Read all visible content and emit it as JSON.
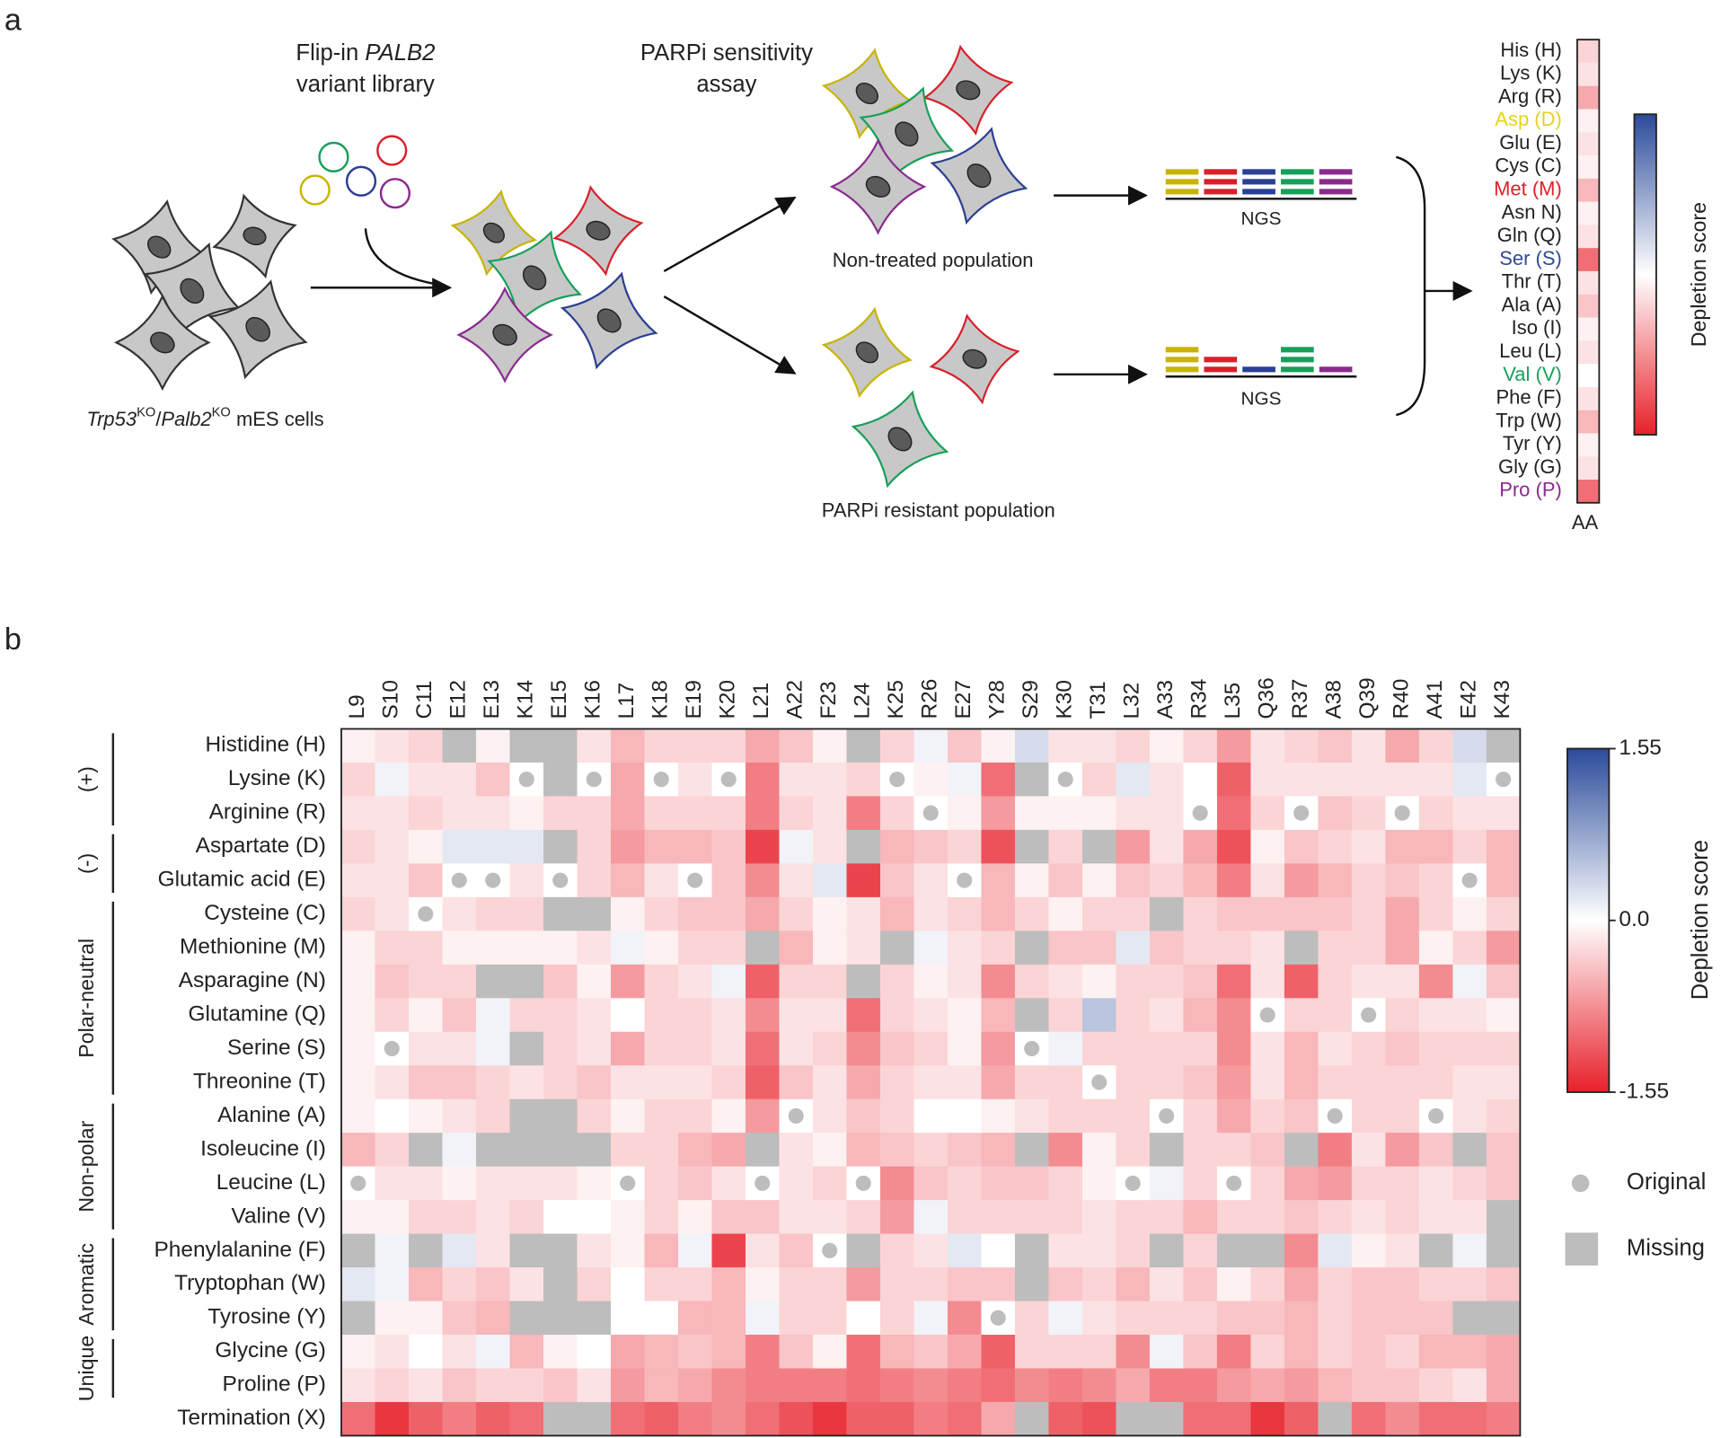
{
  "panel_labels": [
    "a",
    "b"
  ],
  "panel_a": {
    "library_label": {
      "line1": [
        "Flip-in ",
        "PALB2"
      ],
      "line2": "variant library"
    },
    "assay_label": [
      "PARPi sensitivity",
      "assay"
    ],
    "untreated": "Non-treated population",
    "resistant": "PARPi resistant population",
    "ngs": [
      "NGS",
      "NGS"
    ],
    "cell_line": [
      "Trp53",
      "KO",
      "/",
      "Palb2",
      "KO",
      " mES cells"
    ],
    "aa_scores": {
      "labels": [
        "His (H)",
        "Lys (K)",
        "Arg (R)",
        "Asp (D)",
        "Glu (E)",
        "Cys (C)",
        "Met (M)",
        "Asn N)",
        "Gln (Q)",
        "Ser (S)",
        "Thr (T)",
        "Ala (A)",
        "Iso (I)",
        "Leu (L)",
        "Val (V)",
        "Phe (F)",
        "Trp (W)",
        "Tyr (Y)",
        "Gly (G)",
        "Pro (P)"
      ],
      "label_colors": [
        "#222222",
        "#222222",
        "#222222",
        "#e6d21e",
        "#222222",
        "#222222",
        "#e0202a",
        "#222222",
        "#222222",
        "#2e4b9b",
        "#222222",
        "#222222",
        "#222222",
        "#222222",
        "#1aa05a",
        "#222222",
        "#222222",
        "#222222",
        "#222222",
        "#8b2a8e"
      ],
      "values": [
        -0.3,
        -0.2,
        -0.6,
        -0.1,
        -0.2,
        -0.1,
        -0.5,
        -0.1,
        -0.2,
        -1.0,
        -0.2,
        -0.4,
        -0.1,
        -0.2,
        0,
        -0.2,
        -0.5,
        -0.1,
        -0.2,
        -1.0
      ],
      "axis_label": "AA",
      "colorbar_label": "Depletion score"
    }
  },
  "chart_data": {
    "type": "heatmap",
    "columns": [
      "L9",
      "S10",
      "C11",
      "E12",
      "E13",
      "K14",
      "E15",
      "K16",
      "L17",
      "K18",
      "E19",
      "K20",
      "L21",
      "A22",
      "F23",
      "L24",
      "K25",
      "R26",
      "E27",
      "Y28",
      "S29",
      "K30",
      "T31",
      "L32",
      "A33",
      "R34",
      "L35",
      "Q36",
      "R37",
      "A38",
      "Q39",
      "R40",
      "A41",
      "E42",
      "K43"
    ],
    "rows": [
      "Histidine (H)",
      "Lysine (K)",
      "Arginine (R)",
      "Aspartate (D)",
      "Glutamic acid (E)",
      "Cysteine (C)",
      "Methionine (M)",
      "Asparagine (N)",
      "Glutamine (Q)",
      "Serine (S)",
      "Threonine (T)",
      "Alanine (A)",
      "Isoleucine (I)",
      "Leucine (L)",
      "Valine (V)",
      "Phenylalanine (F)",
      "Tryptophan (W)",
      "Tyrosine (Y)",
      "Glycine (G)",
      "Proline (P)",
      "Termination (X)"
    ],
    "groups": [
      {
        "label": "(+)",
        "rows": [
          0,
          2
        ]
      },
      {
        "label": "(-)",
        "rows": [
          3,
          4
        ]
      },
      {
        "label": "Polar-neutral",
        "rows": [
          5,
          10
        ]
      },
      {
        "label": "Non-polar",
        "rows": [
          11,
          14
        ]
      },
      {
        "label": "Aromatic",
        "rows": [
          15,
          17
        ]
      },
      {
        "label": "Unique",
        "rows": [
          18,
          19
        ]
      }
    ],
    "values": [
      [
        -0.1,
        -0.2,
        -0.3,
        null,
        -0.1,
        null,
        null,
        -0.2,
        -0.5,
        -0.3,
        -0.3,
        -0.3,
        -0.6,
        -0.4,
        -0.1,
        null,
        -0.3,
        0.1,
        -0.4,
        -0.1,
        0.3,
        -0.2,
        -0.2,
        -0.3,
        -0.1,
        -0.3,
        -0.7,
        -0.2,
        -0.3,
        -0.4,
        -0.2,
        -0.6,
        -0.3,
        0.3,
        null
      ],
      [
        -0.3,
        0.1,
        -0.2,
        -0.2,
        -0.4,
        0,
        null,
        0,
        -0.6,
        0,
        -0.2,
        0,
        -0.9,
        -0.2,
        -0.2,
        -0.3,
        0,
        -0.1,
        0.1,
        -1.0,
        null,
        0,
        -0.3,
        0.2,
        -0.2,
        0,
        -1.1,
        -0.2,
        -0.2,
        -0.2,
        -0.2,
        -0.2,
        -0.2,
        0.2,
        0
      ],
      [
        -0.2,
        -0.2,
        -0.3,
        -0.2,
        -0.2,
        -0.1,
        -0.3,
        -0.3,
        -0.6,
        -0.3,
        -0.3,
        -0.3,
        -0.9,
        -0.3,
        -0.2,
        -0.9,
        -0.3,
        0,
        -0.1,
        -0.7,
        -0.1,
        -0.1,
        -0.1,
        -0.2,
        -0.2,
        0,
        -1.0,
        -0.3,
        0,
        -0.4,
        -0.3,
        0,
        -0.3,
        -0.2,
        -0.2
      ],
      [
        -0.3,
        -0.2,
        -0.1,
        0.2,
        0.2,
        0.2,
        null,
        -0.3,
        -0.7,
        -0.5,
        -0.5,
        -0.4,
        -1.3,
        0.1,
        -0.2,
        null,
        -0.5,
        -0.4,
        -0.3,
        -1.2,
        null,
        -0.3,
        null,
        -0.7,
        -0.2,
        -0.6,
        -1.2,
        -0.1,
        -0.4,
        -0.3,
        -0.2,
        -0.5,
        -0.5,
        -0.3,
        -0.5
      ],
      [
        -0.2,
        -0.2,
        -0.4,
        0,
        0,
        -0.2,
        0,
        -0.3,
        -0.5,
        -0.2,
        0,
        -0.4,
        -0.8,
        -0.2,
        0.2,
        -1.3,
        -0.4,
        -0.2,
        0,
        -0.5,
        -0.1,
        -0.4,
        -0.1,
        -0.4,
        -0.3,
        -0.5,
        -0.9,
        -0.2,
        -0.7,
        -0.5,
        -0.3,
        -0.4,
        -0.3,
        0,
        -0.5
      ],
      [
        -0.3,
        -0.2,
        0,
        -0.2,
        -0.3,
        -0.3,
        null,
        null,
        -0.1,
        -0.3,
        -0.4,
        -0.4,
        -0.6,
        -0.3,
        -0.1,
        -0.2,
        -0.5,
        -0.2,
        -0.3,
        -0.5,
        -0.3,
        -0.1,
        -0.3,
        -0.3,
        null,
        -0.3,
        -0.4,
        -0.4,
        -0.4,
        -0.4,
        -0.3,
        -0.6,
        -0.3,
        -0.1,
        -0.3
      ],
      [
        -0.1,
        -0.3,
        -0.3,
        -0.1,
        -0.1,
        -0.1,
        -0.1,
        -0.2,
        0.1,
        -0.1,
        -0.3,
        -0.3,
        null,
        -0.5,
        -0.1,
        -0.2,
        null,
        0.1,
        -0.2,
        -0.3,
        null,
        -0.4,
        -0.4,
        0.2,
        -0.4,
        -0.3,
        -0.3,
        -0.2,
        null,
        -0.3,
        -0.3,
        -0.6,
        -0.1,
        -0.3,
        -0.7
      ],
      [
        -0.1,
        -0.4,
        -0.3,
        -0.3,
        null,
        null,
        -0.4,
        -0.1,
        -0.7,
        -0.3,
        -0.2,
        0.1,
        -1.1,
        -0.3,
        -0.3,
        null,
        -0.3,
        -0.1,
        -0.2,
        -0.8,
        -0.3,
        -0.2,
        -0.1,
        -0.3,
        -0.3,
        -0.4,
        -1.0,
        -0.2,
        -1.1,
        -0.3,
        -0.2,
        -0.2,
        -0.8,
        0.1,
        -0.4
      ],
      [
        -0.1,
        -0.3,
        -0.1,
        -0.4,
        0.1,
        -0.3,
        -0.3,
        -0.2,
        0,
        -0.3,
        -0.3,
        -0.2,
        -0.8,
        -0.2,
        -0.2,
        -1.0,
        -0.3,
        -0.2,
        -0.1,
        -0.5,
        null,
        -0.3,
        0.5,
        -0.3,
        -0.2,
        -0.5,
        -0.8,
        0,
        -0.3,
        -0.3,
        0,
        -0.3,
        -0.2,
        -0.2,
        -0.1
      ],
      [
        -0.1,
        0,
        -0.2,
        -0.2,
        0.1,
        null,
        -0.3,
        -0.2,
        -0.6,
        -0.3,
        -0.3,
        -0.2,
        -1.0,
        -0.2,
        -0.3,
        -0.8,
        -0.4,
        -0.3,
        -0.1,
        -0.7,
        0,
        0.1,
        -0.3,
        -0.3,
        -0.3,
        -0.3,
        -0.8,
        -0.2,
        -0.5,
        -0.2,
        -0.3,
        -0.4,
        -0.3,
        -0.3,
        -0.3
      ],
      [
        -0.1,
        -0.2,
        -0.4,
        -0.4,
        -0.3,
        -0.2,
        -0.3,
        -0.4,
        -0.2,
        -0.2,
        -0.2,
        -0.3,
        -1.1,
        -0.4,
        -0.2,
        -0.6,
        -0.3,
        -0.2,
        -0.2,
        -0.6,
        -0.3,
        -0.3,
        0,
        -0.3,
        -0.3,
        -0.4,
        -0.7,
        -0.2,
        -0.5,
        -0.3,
        -0.3,
        -0.3,
        -0.3,
        -0.2,
        -0.2
      ],
      [
        -0.1,
        0,
        -0.1,
        -0.2,
        -0.3,
        null,
        null,
        -0.3,
        -0.1,
        -0.3,
        -0.3,
        -0.1,
        -0.7,
        0,
        -0.2,
        -0.4,
        -0.3,
        0,
        0,
        -0.1,
        -0.2,
        -0.3,
        -0.3,
        -0.3,
        0,
        -0.3,
        -0.6,
        -0.3,
        -0.4,
        0,
        -0.3,
        -0.3,
        0,
        -0.2,
        -0.3
      ],
      [
        -0.5,
        -0.3,
        null,
        0.1,
        null,
        null,
        null,
        null,
        -0.3,
        -0.3,
        -0.5,
        -0.6,
        null,
        -0.2,
        -0.1,
        -0.5,
        -0.4,
        -0.3,
        -0.4,
        -0.5,
        null,
        -0.8,
        -0.1,
        -0.3,
        null,
        -0.3,
        -0.3,
        -0.4,
        null,
        -0.9,
        -0.2,
        -0.7,
        -0.4,
        null,
        -0.4
      ],
      [
        0,
        -0.2,
        -0.2,
        -0.1,
        -0.2,
        -0.2,
        -0.2,
        -0.1,
        0,
        -0.3,
        -0.4,
        -0.2,
        0,
        -0.2,
        -0.3,
        0,
        -0.8,
        -0.4,
        -0.3,
        -0.4,
        -0.4,
        -0.3,
        -0.1,
        0,
        0.1,
        -0.3,
        0,
        -0.3,
        -0.6,
        -0.7,
        -0.3,
        -0.3,
        -0.2,
        -0.3,
        -0.4
      ],
      [
        -0.1,
        -0.1,
        -0.3,
        -0.3,
        -0.2,
        -0.3,
        0,
        0,
        -0.1,
        -0.3,
        -0.1,
        -0.4,
        -0.4,
        -0.2,
        -0.2,
        -0.3,
        -0.7,
        0.1,
        -0.3,
        -0.3,
        -0.3,
        -0.3,
        -0.2,
        -0.3,
        -0.3,
        -0.5,
        -0.3,
        -0.3,
        -0.4,
        -0.3,
        -0.2,
        -0.3,
        -0.2,
        -0.2,
        null
      ],
      [
        null,
        0.1,
        null,
        0.2,
        -0.2,
        null,
        null,
        -0.2,
        -0.1,
        -0.5,
        0.1,
        -1.3,
        -0.2,
        -0.4,
        0,
        null,
        -0.3,
        -0.2,
        0.2,
        0,
        null,
        -0.2,
        -0.2,
        -0.3,
        null,
        -0.3,
        null,
        null,
        -0.8,
        0.2,
        -0.1,
        -0.2,
        null,
        0.1,
        null
      ],
      [
        0.2,
        0.1,
        -0.5,
        -0.3,
        -0.4,
        -0.2,
        null,
        -0.3,
        0,
        -0.3,
        -0.3,
        -0.5,
        -0.1,
        -0.3,
        -0.3,
        -0.7,
        -0.3,
        -0.3,
        -0.4,
        -0.4,
        null,
        -0.4,
        -0.3,
        -0.5,
        -0.2,
        -0.4,
        -0.1,
        -0.3,
        -0.6,
        -0.3,
        -0.4,
        -0.4,
        -0.3,
        -0.3,
        -0.4
      ],
      [
        null,
        -0.1,
        -0.1,
        -0.4,
        -0.5,
        null,
        null,
        null,
        0,
        0,
        -0.5,
        -0.5,
        0.1,
        -0.3,
        -0.3,
        0,
        -0.3,
        0.1,
        -0.8,
        0,
        -0.3,
        0.1,
        -0.2,
        -0.3,
        -0.3,
        -0.3,
        -0.4,
        -0.4,
        -0.5,
        -0.3,
        -0.4,
        -0.4,
        -0.4,
        null,
        null
      ],
      [
        -0.1,
        -0.2,
        0,
        -0.2,
        0.1,
        -0.5,
        -0.1,
        0,
        -0.6,
        -0.5,
        -0.4,
        -0.5,
        -0.9,
        -0.4,
        -0.1,
        -1.0,
        -0.5,
        -0.4,
        -0.6,
        -1.1,
        -0.3,
        -0.3,
        -0.3,
        -0.8,
        0.1,
        -0.4,
        -0.9,
        -0.3,
        -0.5,
        -0.3,
        -0.4,
        -0.3,
        -0.5,
        -0.5,
        -0.6
      ],
      [
        -0.2,
        -0.3,
        -0.2,
        -0.4,
        -0.3,
        -0.3,
        -0.4,
        -0.2,
        -0.7,
        -0.5,
        -0.6,
        -0.8,
        -0.9,
        -0.9,
        -0.9,
        -1.0,
        -0.9,
        -0.8,
        -0.9,
        -1.0,
        -0.8,
        -0.9,
        -0.8,
        -0.6,
        -0.9,
        -0.9,
        -0.7,
        -0.6,
        -0.7,
        -0.5,
        -0.4,
        -0.4,
        -0.3,
        -0.2,
        -0.6
      ],
      [
        -1.0,
        -1.4,
        -1.1,
        -0.9,
        -1.1,
        -1.0,
        null,
        null,
        -1.0,
        -1.1,
        -0.9,
        -0.8,
        -1.0,
        -1.2,
        -1.4,
        -1.1,
        -1.1,
        -0.9,
        -1.0,
        -0.6,
        null,
        -1.1,
        -1.2,
        null,
        null,
        -1.0,
        -1.0,
        -1.4,
        -1.1,
        null,
        -1.0,
        -0.8,
        -1.0,
        -1.0,
        -0.9
      ]
    ],
    "original_rows": [
      13,
      9,
      5,
      4,
      4,
      1,
      4,
      1,
      13,
      1,
      4,
      1,
      13,
      11,
      15,
      13,
      1,
      2,
      4,
      17,
      9,
      1,
      10,
      13,
      11,
      2,
      13,
      8,
      2,
      11,
      8,
      2,
      11,
      4,
      1
    ],
    "zlim": [
      -1.55,
      1.55
    ],
    "zticks": [
      1.55,
      {
        "value": 0,
        "label": "0.0"
      },
      -1.55
    ],
    "colorbar_label": "Depletion score",
    "legend": {
      "original": "Original",
      "missing": "Missing"
    },
    "colors": {
      "low": "#e8202a",
      "mid": "#ffffff",
      "high": "#2b4b9b",
      "missing": "#bdbdbd",
      "original": "#bdbdbd"
    }
  }
}
